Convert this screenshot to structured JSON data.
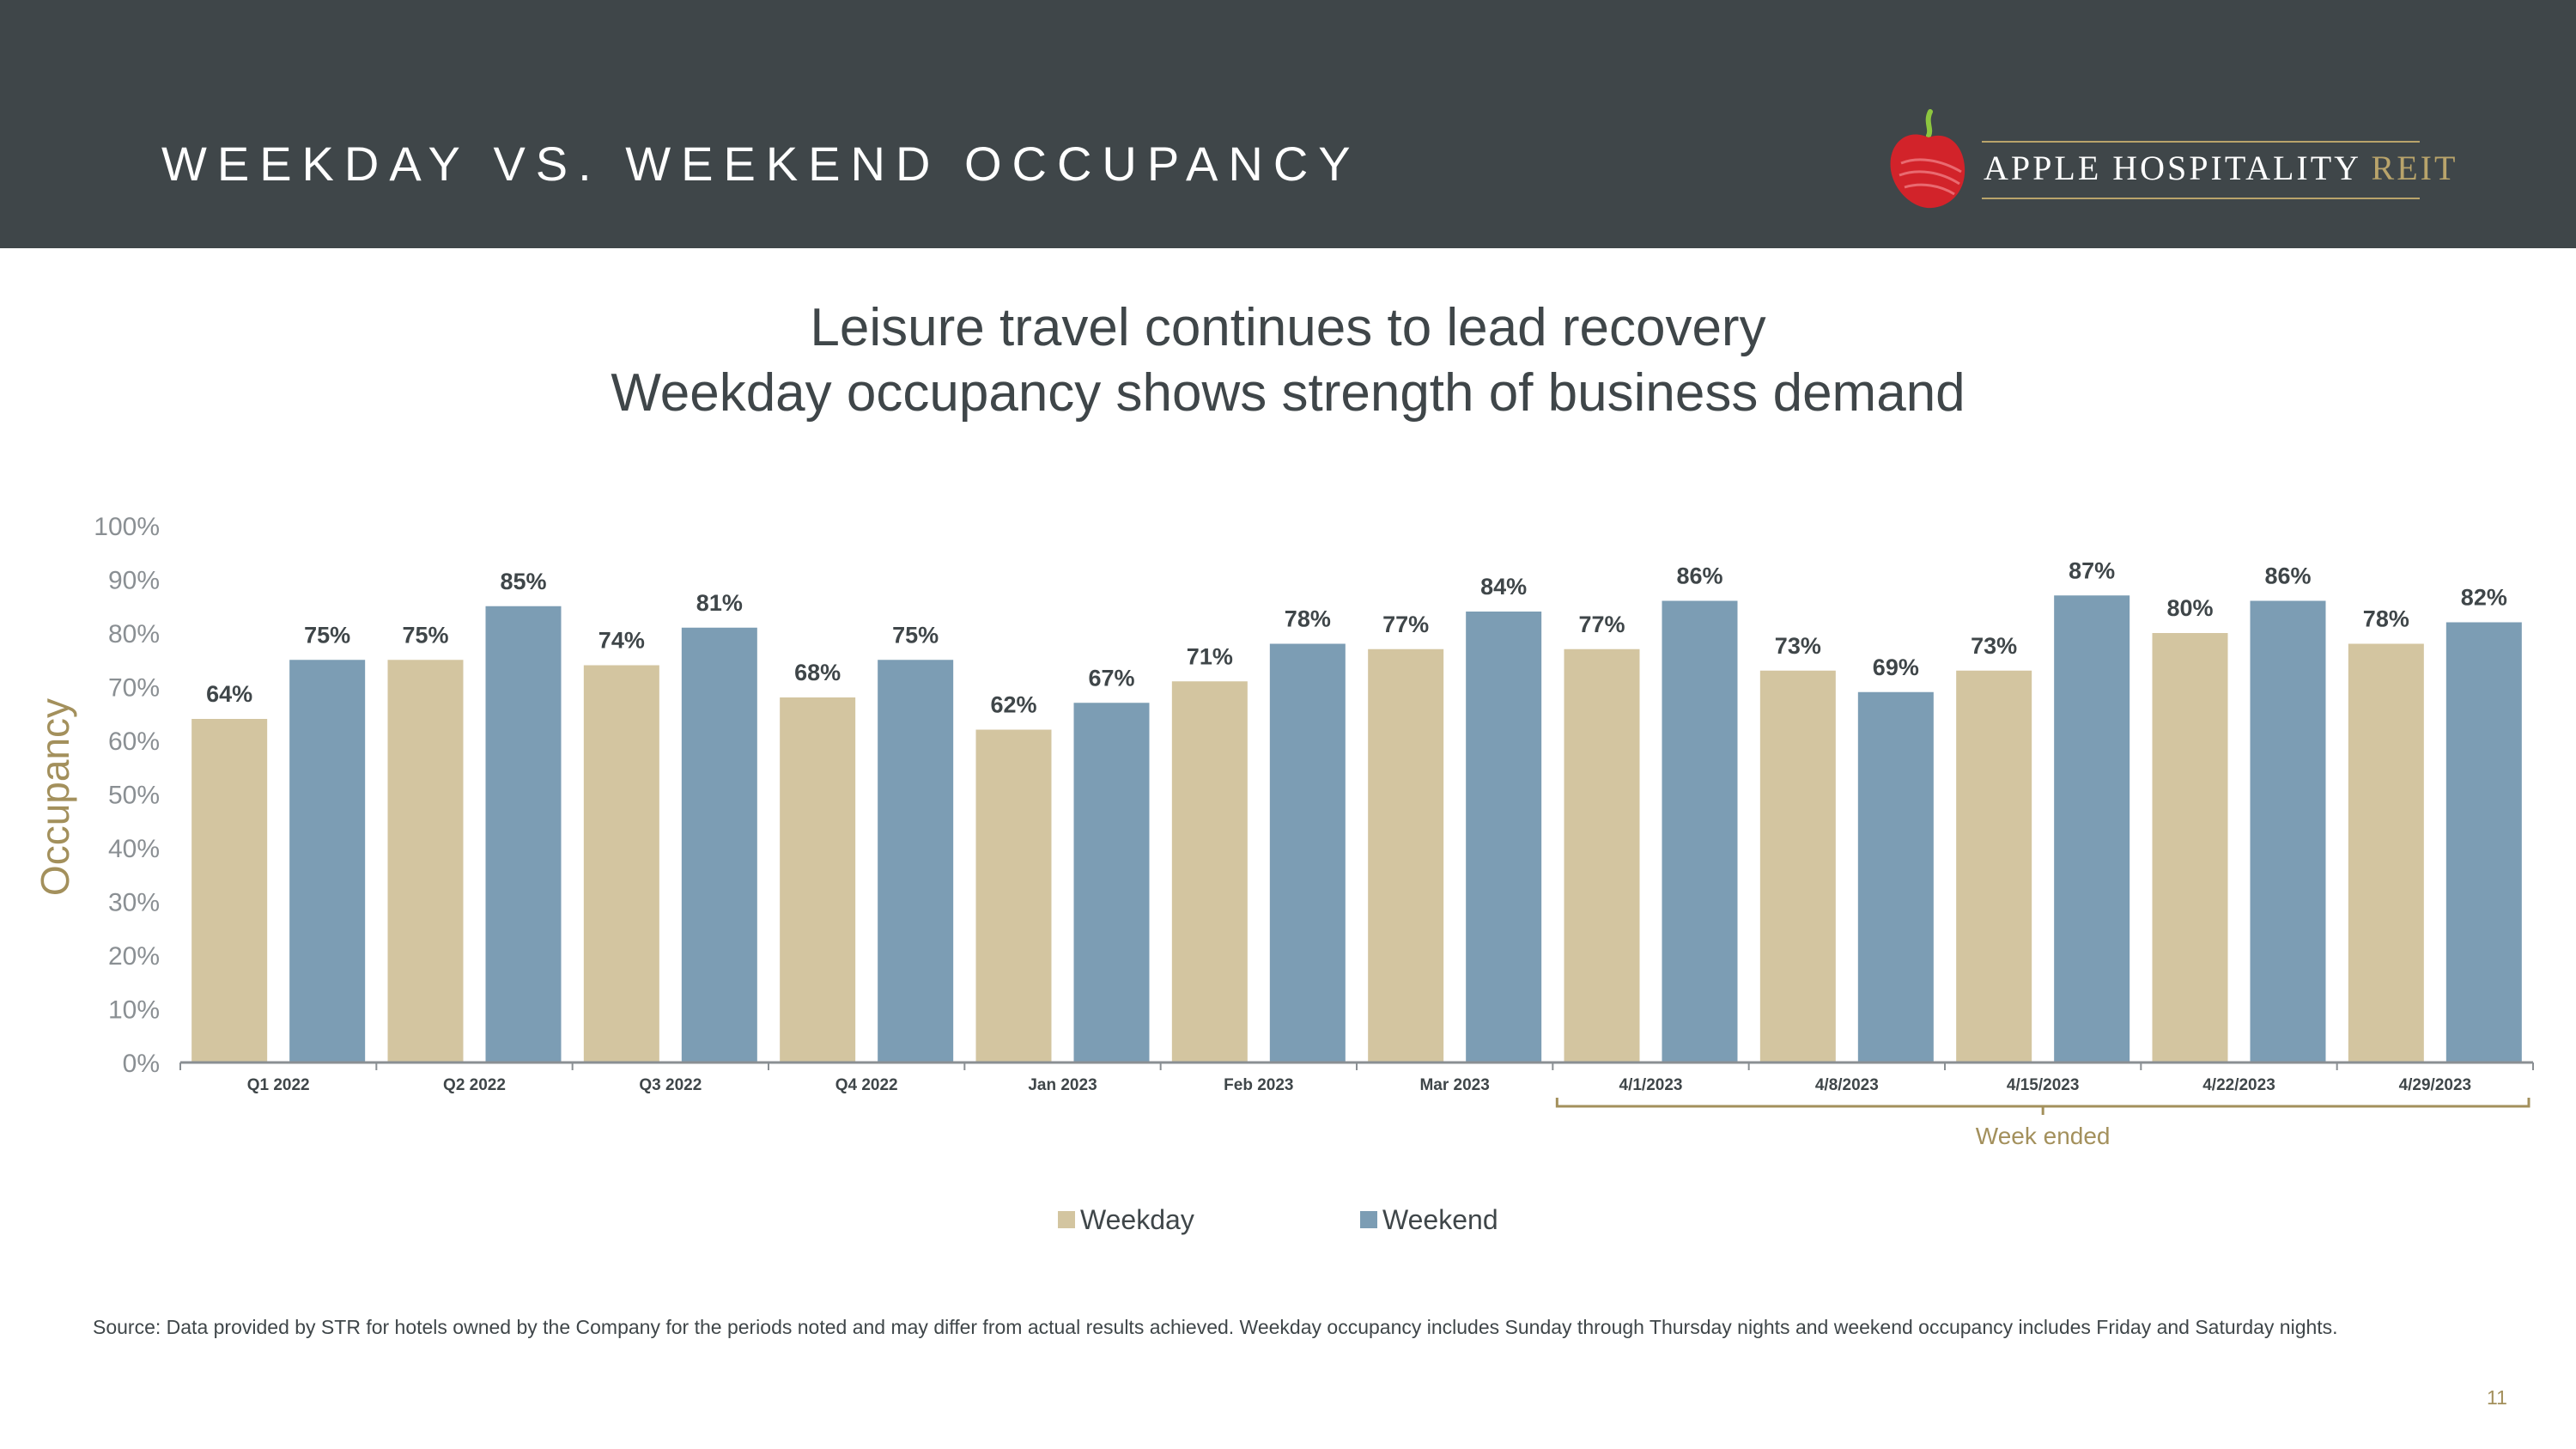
{
  "header": {
    "title": "WEEKDAY VS. WEEKEND OCCUPANCY",
    "logo_text_main": "APPLE HOSPITALITY",
    "logo_text_accent": "REIT"
  },
  "subtitle": {
    "line1": "Leisure travel continues to lead recovery",
    "line2": "Weekday occupancy shows strength of business demand"
  },
  "chart_data": {
    "type": "bar",
    "ylabel": "Occupancy",
    "xlabel": "",
    "ylim": [
      0,
      100
    ],
    "yticks": [
      0,
      10,
      20,
      30,
      40,
      50,
      60,
      70,
      80,
      90,
      100
    ],
    "ytick_labels": [
      "0%",
      "10%",
      "20%",
      "30%",
      "40%",
      "50%",
      "60%",
      "70%",
      "80%",
      "90%",
      "100%"
    ],
    "categories": [
      "Q1 2022",
      "Q2 2022",
      "Q3 2022",
      "Q4 2022",
      "Jan 2023",
      "Feb 2023",
      "Mar 2023",
      "4/1/2023",
      "4/8/2023",
      "4/15/2023",
      "4/22/2023",
      "4/29/2023"
    ],
    "series": [
      {
        "name": "Weekday",
        "color": "#d3c5a0",
        "values": [
          64,
          75,
          74,
          68,
          62,
          71,
          77,
          77,
          73,
          73,
          80,
          78
        ],
        "labels": [
          "64%",
          "75%",
          "74%",
          "68%",
          "62%",
          "71%",
          "77%",
          "77%",
          "73%",
          "73%",
          "80%",
          "78%"
        ]
      },
      {
        "name": "Weekend",
        "color": "#7c9db4",
        "values": [
          75,
          85,
          81,
          75,
          67,
          78,
          84,
          86,
          69,
          87,
          86,
          82
        ],
        "labels": [
          "75%",
          "85%",
          "81%",
          "75%",
          "67%",
          "78%",
          "84%",
          "86%",
          "69%",
          "87%",
          "86%",
          "82%"
        ]
      }
    ],
    "bracket": {
      "label": "Week ended",
      "first_category": 7,
      "last_category": 11
    },
    "grid": false,
    "legend": "bottom-center"
  },
  "legend": {
    "weekday": "Weekday",
    "weekend": "Weekend"
  },
  "footer": {
    "source": "Source:  Data provided by STR for hotels owned by the Company for the periods noted and may differ from actual results achieved. Weekday occupancy includes Sunday through Thursday nights and weekend occupancy includes Friday and Saturday nights.",
    "page_number": "11"
  },
  "colors": {
    "header_bg": "#3f4649",
    "accent_gold": "#b9a46b",
    "weekday": "#d3c5a0",
    "weekend": "#7c9db4",
    "apple_red": "#d2232a",
    "leaf_green": "#8dc63f"
  }
}
